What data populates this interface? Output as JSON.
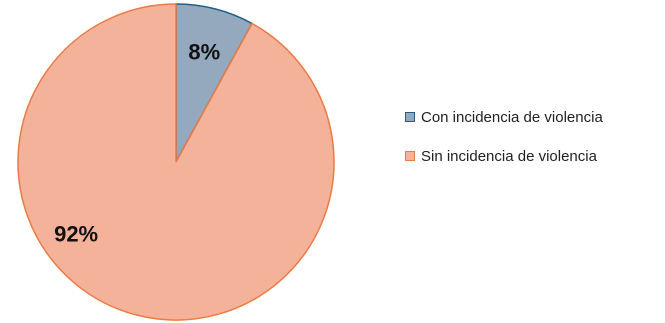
{
  "chart_data": {
    "type": "pie",
    "title": "",
    "slices": [
      {
        "label": "Con incidencia de violencia",
        "value": 8,
        "data_label": "8%",
        "fill": "#94a9bd",
        "stroke": "#1f5f8b"
      },
      {
        "label": "Sin incidencia de violencia",
        "value": 92,
        "data_label": "92%",
        "fill": "#f4b29a",
        "stroke": "#ea7b45"
      }
    ],
    "legend_position": "right"
  }
}
